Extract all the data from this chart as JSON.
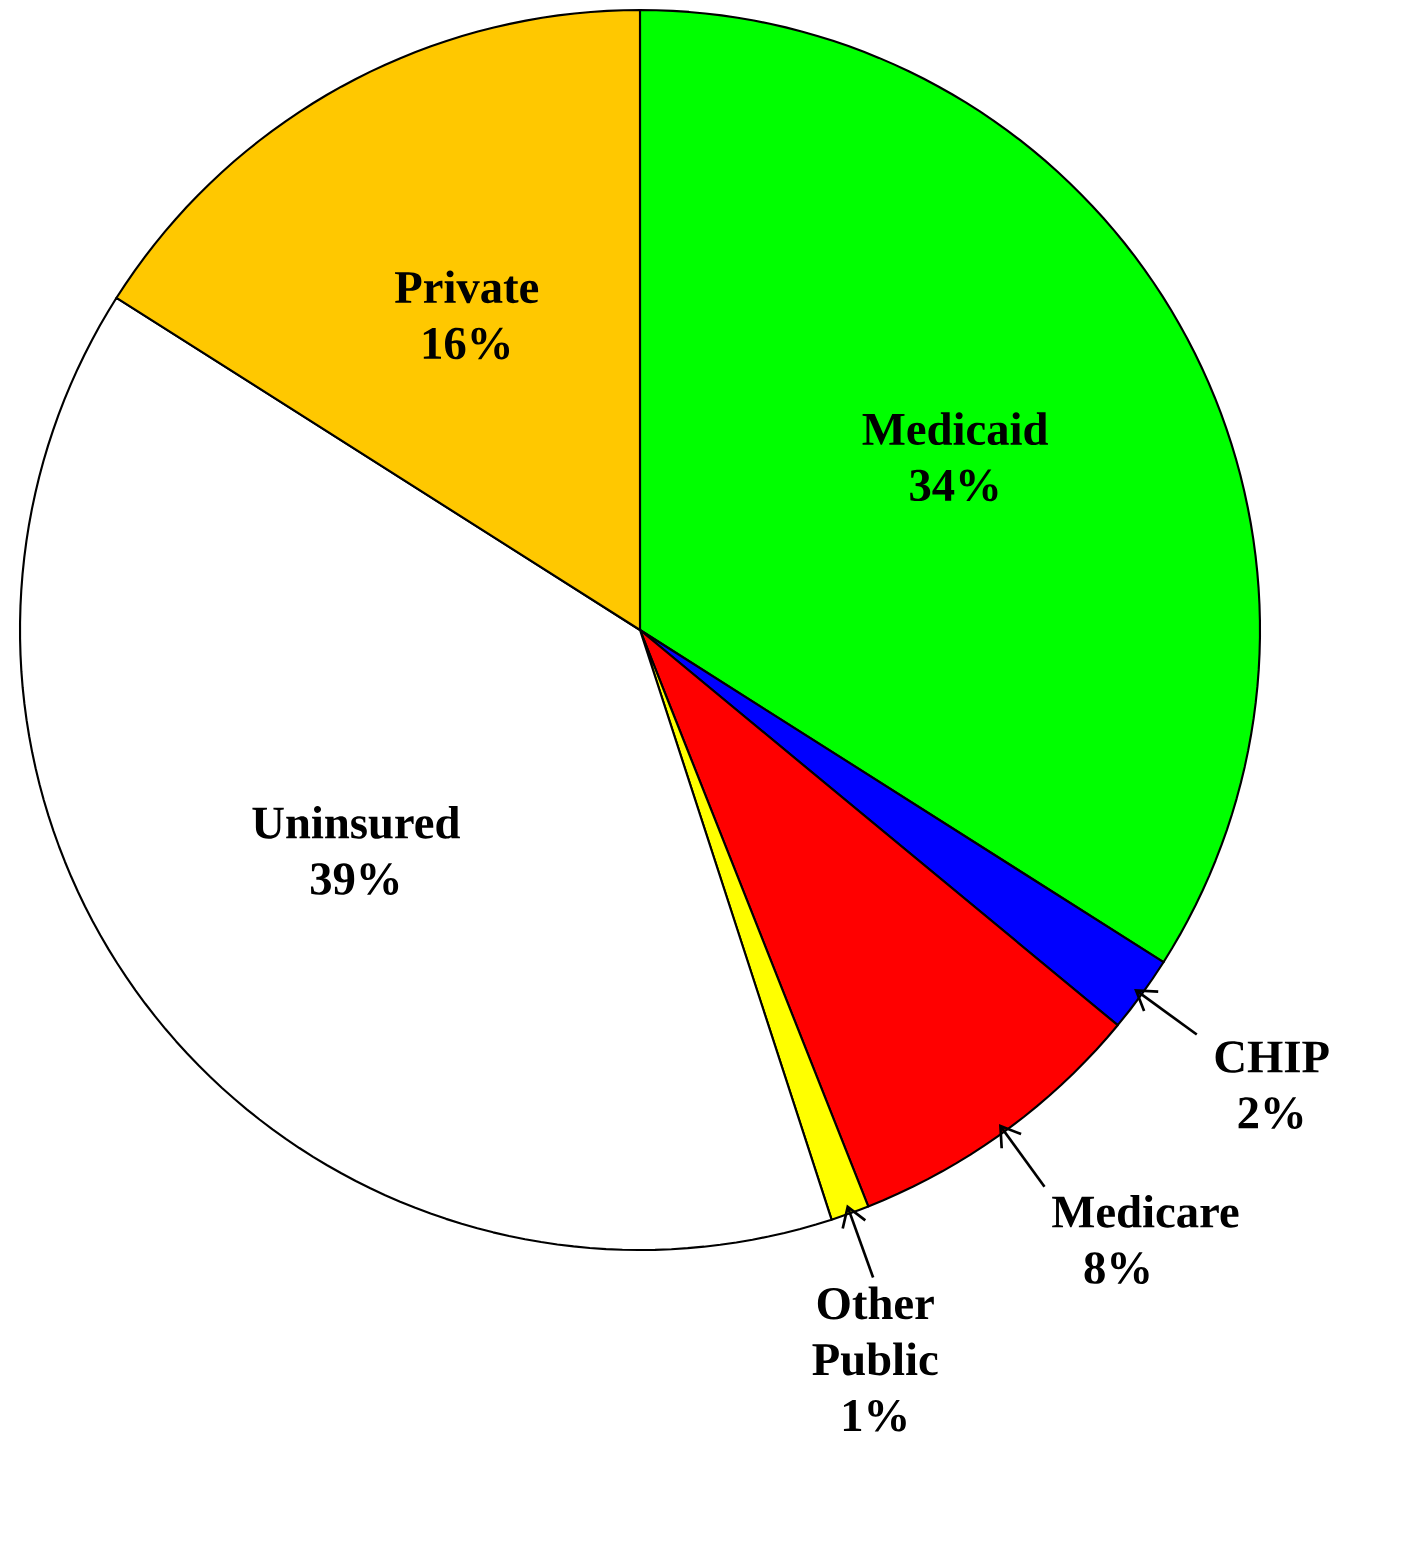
{
  "chart_data": {
    "type": "pie",
    "categories": [
      "Medicaid",
      "CHIP",
      "Medicare",
      "Other Public",
      "Uninsured",
      "Private"
    ],
    "values": [
      34,
      2,
      8,
      1,
      39,
      16
    ],
    "value_labels": [
      "34%",
      "2%",
      "8%",
      "1%",
      "39%",
      "16%"
    ],
    "colors": [
      "#00ff00",
      "#0000ff",
      "#ff0000",
      "#ffff00",
      "#ffffff",
      "#ffc800"
    ]
  }
}
